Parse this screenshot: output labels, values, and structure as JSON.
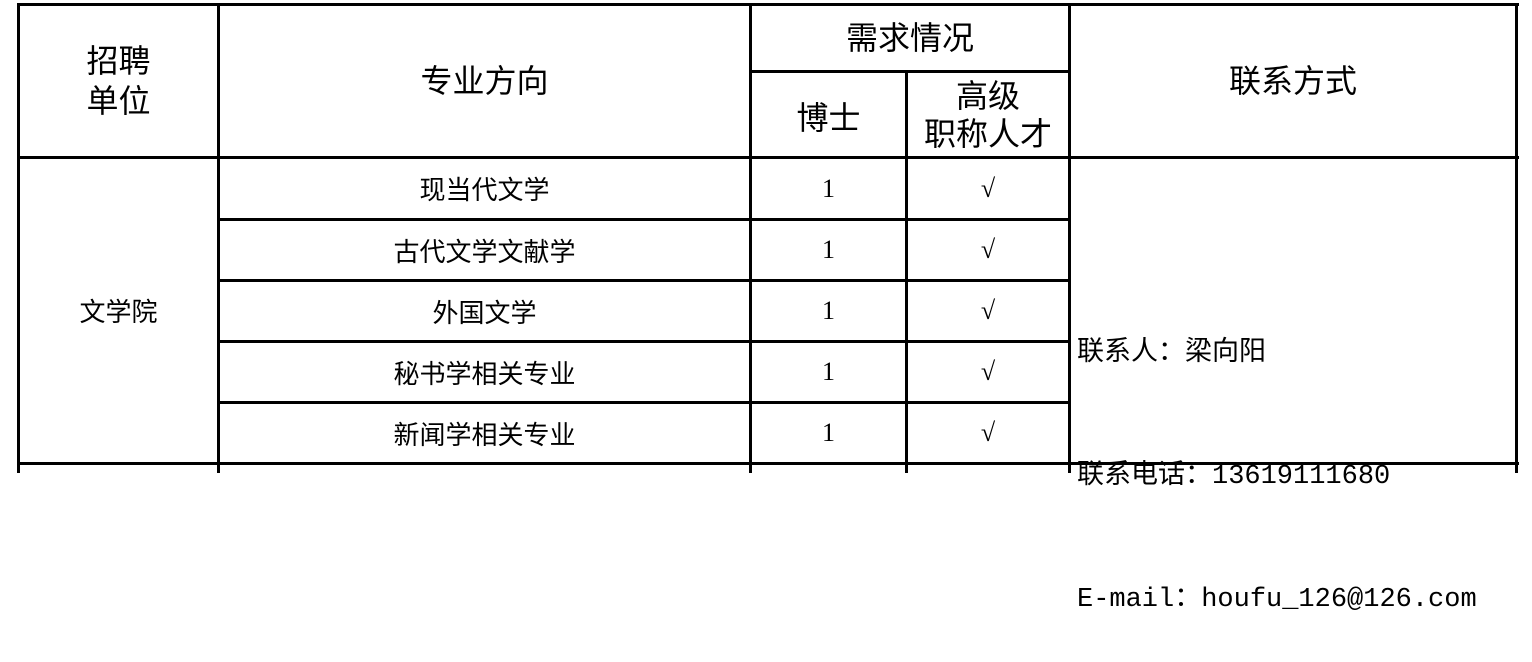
{
  "header": {
    "unit": "招聘\n单位",
    "major": "专业方向",
    "demand": "需求情况",
    "phd": "博士",
    "senior": "高级\n职称人才",
    "contact": "联系方式"
  },
  "group": {
    "unit": "文学院",
    "rows": [
      {
        "major": "现当代文学",
        "phd": "1",
        "senior": "√"
      },
      {
        "major": "古代文学文献学",
        "phd": "1",
        "senior": "√"
      },
      {
        "major": "外国文学",
        "phd": "1",
        "senior": "√"
      },
      {
        "major": "秘书学相关专业",
        "phd": "1",
        "senior": "√"
      },
      {
        "major": "新闻学相关专业",
        "phd": "1",
        "senior": "√"
      }
    ],
    "contact": {
      "person": "联系人：梁向阳",
      "phone": "联系电话：13619111680",
      "email": "E-mail：houfu_126@126.com"
    }
  }
}
